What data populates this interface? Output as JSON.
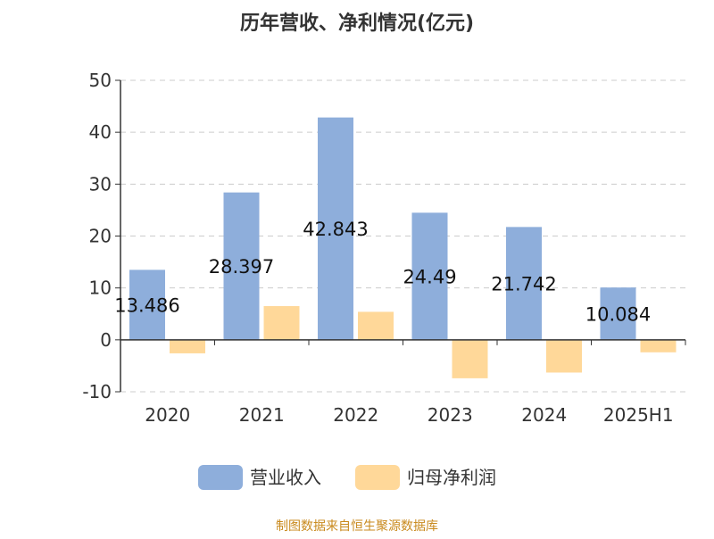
{
  "chart_data": {
    "type": "bar",
    "title": "历年营收、净利情况(亿元)",
    "categories": [
      "2020",
      "2021",
      "2022",
      "2023",
      "2024",
      "2025H1"
    ],
    "series": [
      {
        "name": "营业收入",
        "color": "#8eaedb",
        "values": [
          13.486,
          28.397,
          42.843,
          24.49,
          21.742,
          10.084
        ],
        "labels": [
          "13.486",
          "28.397",
          "42.843",
          "24.49",
          "21.742",
          "10.084"
        ]
      },
      {
        "name": "归母净利润",
        "color": "#ffd899",
        "values": [
          -2.6,
          6.5,
          5.4,
          -7.4,
          -6.3,
          -2.4
        ]
      }
    ],
    "ylim": [
      -10,
      50
    ],
    "yticks": [
      "-10",
      "0",
      "10",
      "20",
      "30",
      "40",
      "50"
    ],
    "grid": true,
    "legend": "bottom",
    "source": "制图数据来自恒生聚源数据库"
  }
}
